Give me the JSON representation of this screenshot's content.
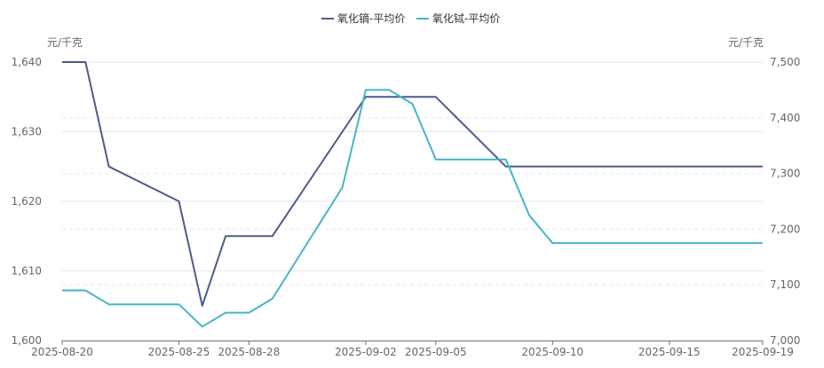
{
  "chart_data": {
    "type": "line",
    "legend": {
      "position": "top-center"
    },
    "y_left": {
      "unit": "元/千克",
      "min": 1600,
      "max": 1640,
      "ticks": [
        "1,600",
        "1,610",
        "1,620",
        "1,630",
        "1,640"
      ]
    },
    "y_right": {
      "unit": "元/千克",
      "min": 7000,
      "max": 7500,
      "ticks": [
        "7,000",
        "7,100",
        "7,200",
        "7,300",
        "7,400",
        "7,500"
      ]
    },
    "x_tick_labels": [
      "2025-08-20",
      "2025-08-25",
      "2025-08-28",
      "2025-09-02",
      "2025-09-05",
      "2025-09-10",
      "2025-09-15",
      "2025-09-19"
    ],
    "series": [
      {
        "name": "氧化镝-平均价",
        "axis": "left",
        "color": "#4f5a8c",
        "points": [
          [
            "2025-08-20",
            1640
          ],
          [
            "2025-08-21",
            1640
          ],
          [
            "2025-08-22",
            1625
          ],
          [
            "2025-08-25",
            1620
          ],
          [
            "2025-08-26",
            1605
          ],
          [
            "2025-08-27",
            1615
          ],
          [
            "2025-08-28",
            1615
          ],
          [
            "2025-08-29",
            1615
          ],
          [
            "2025-09-01",
            1630
          ],
          [
            "2025-09-02",
            1635
          ],
          [
            "2025-09-03",
            1635
          ],
          [
            "2025-09-04",
            1635
          ],
          [
            "2025-09-05",
            1635
          ],
          [
            "2025-09-08",
            1625
          ],
          [
            "2025-09-09",
            1625
          ],
          [
            "2025-09-10",
            1625
          ],
          [
            "2025-09-11",
            1625
          ],
          [
            "2025-09-12",
            1625
          ],
          [
            "2025-09-15",
            1625
          ],
          [
            "2025-09-16",
            1625
          ],
          [
            "2025-09-17",
            1625
          ],
          [
            "2025-09-18",
            1625
          ],
          [
            "2025-09-19",
            1625
          ]
        ]
      },
      {
        "name": "氧化铽-平均价",
        "axis": "right",
        "color": "#45b5c6",
        "points": [
          [
            "2025-08-20",
            7090
          ],
          [
            "2025-08-21",
            7090
          ],
          [
            "2025-08-22",
            7065
          ],
          [
            "2025-08-25",
            7065
          ],
          [
            "2025-08-26",
            7025
          ],
          [
            "2025-08-27",
            7050
          ],
          [
            "2025-08-28",
            7050
          ],
          [
            "2025-08-29",
            7075
          ],
          [
            "2025-09-01",
            7275
          ],
          [
            "2025-09-02",
            7450
          ],
          [
            "2025-09-03",
            7450
          ],
          [
            "2025-09-04",
            7425
          ],
          [
            "2025-09-05",
            7325
          ],
          [
            "2025-09-08",
            7325
          ],
          [
            "2025-09-09",
            7225
          ],
          [
            "2025-09-10",
            7175
          ],
          [
            "2025-09-11",
            7175
          ],
          [
            "2025-09-12",
            7175
          ],
          [
            "2025-09-15",
            7175
          ],
          [
            "2025-09-16",
            7175
          ],
          [
            "2025-09-17",
            7175
          ],
          [
            "2025-09-18",
            7175
          ],
          [
            "2025-09-19",
            7175
          ]
        ]
      }
    ]
  }
}
